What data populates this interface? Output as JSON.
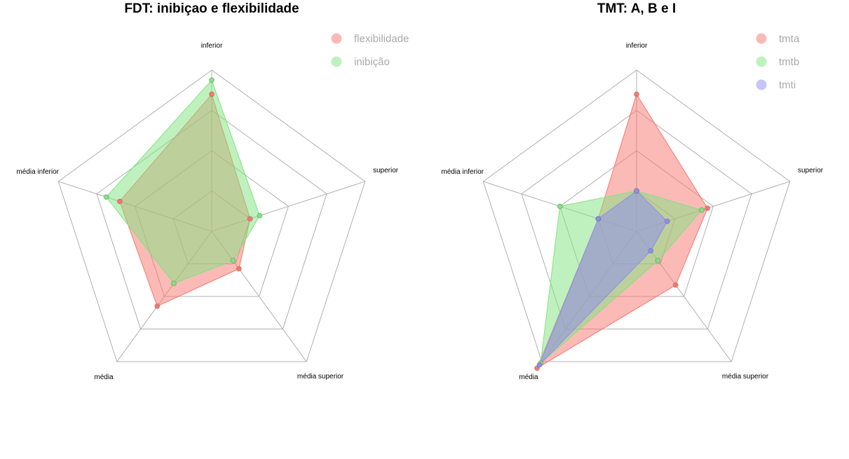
{
  "chart_data": [
    {
      "type": "radar",
      "title": "FDT: inibiçao e flexibilidade",
      "axes": [
        "inferior",
        "superior",
        "média superior",
        "média",
        "média inferior"
      ],
      "rlim": [
        0,
        4
      ],
      "rings": 4,
      "grid": true,
      "legend_position": "top-right",
      "series": [
        {
          "name": "flexibilidade",
          "color": "#F8766D",
          "values": [
            3.4,
            1.0,
            1.15,
            2.3,
            2.4
          ]
        },
        {
          "name": "inibição",
          "color": "#7FE37F",
          "values": [
            3.75,
            1.25,
            0.9,
            1.6,
            2.75
          ]
        }
      ]
    },
    {
      "type": "radar",
      "title": "TMT: A, B e I",
      "axes": [
        "inferior",
        "superior",
        "média superior",
        "média",
        "média inferior"
      ],
      "rlim": [
        0,
        4
      ],
      "rings": 4,
      "grid": true,
      "legend_position": "top-right",
      "series": [
        {
          "name": "tmta",
          "color": "#F8766D",
          "values": [
            3.4,
            1.85,
            1.65,
            4.2,
            1.0
          ]
        },
        {
          "name": "tmtb",
          "color": "#7FE37F",
          "values": [
            1.0,
            1.7,
            0.9,
            4.05,
            2.0
          ]
        },
        {
          "name": "tmti",
          "color": "#8C8CF5",
          "values": [
            1.0,
            0.8,
            0.6,
            4.1,
            1.0
          ]
        }
      ]
    }
  ]
}
